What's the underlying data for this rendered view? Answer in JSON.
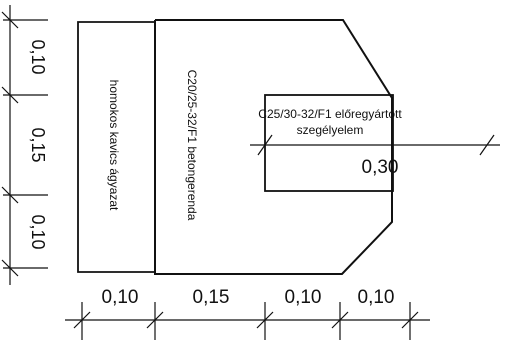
{
  "labels": {
    "gravel_bed": "homokos kavics ágyazat",
    "concrete_beam": "C20/25-32/F1 betongerenda",
    "curb_line1": "C25/30-32/F1 előregyártott",
    "curb_line2": "szegélyelem",
    "curb_width": "0,30"
  },
  "dimensions": {
    "vertical": [
      "0,10",
      "0,15",
      "0,10"
    ],
    "horizontal": [
      "0,10",
      "0,15",
      "0,10",
      "0,10"
    ]
  }
}
